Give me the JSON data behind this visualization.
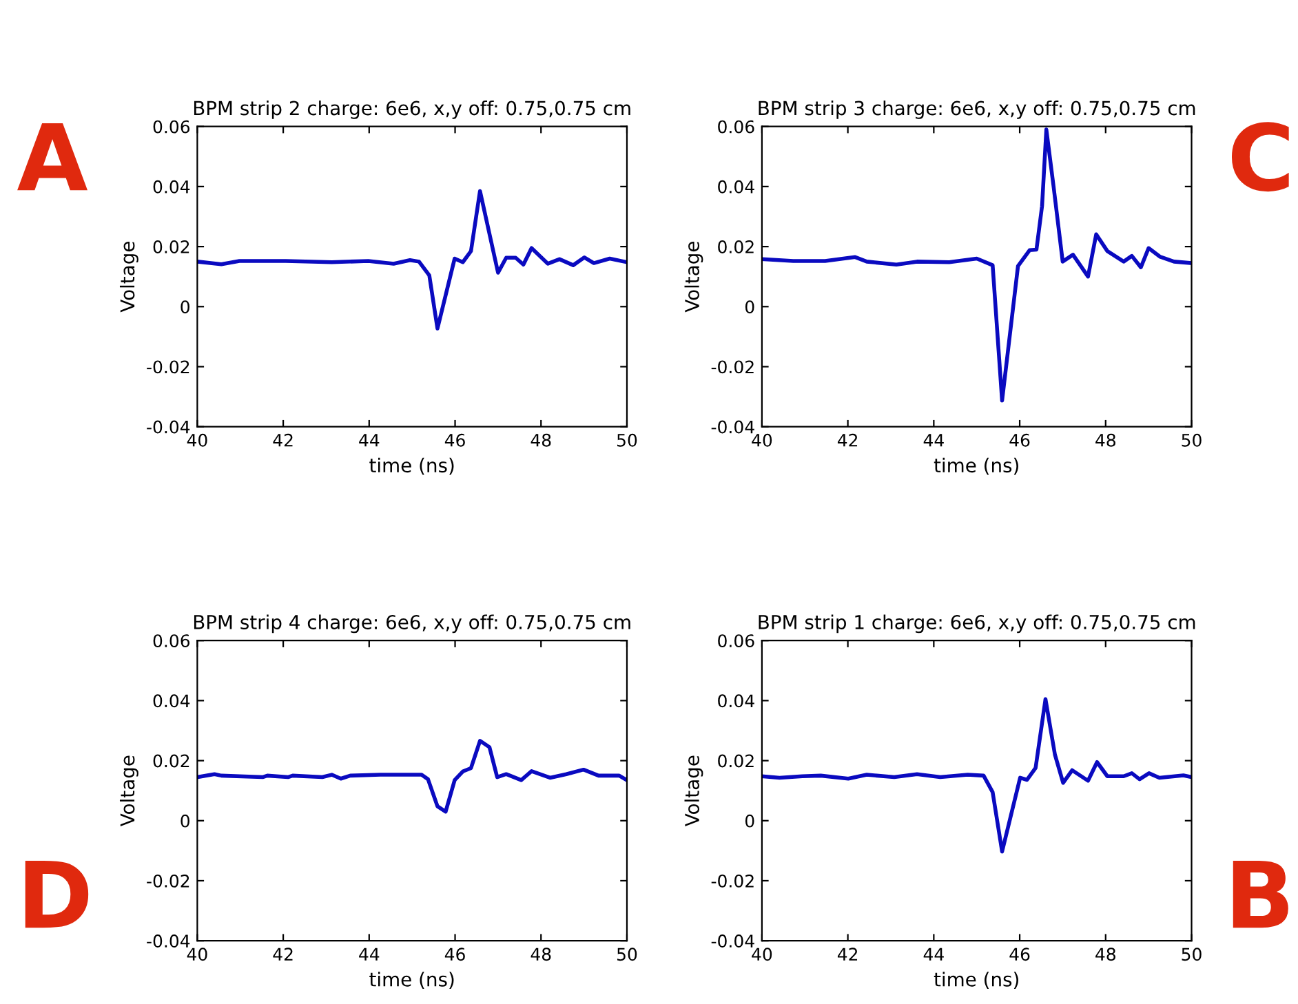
{
  "chart_data": [
    {
      "type": "line",
      "title": "BPM strip 2 charge: 6e6, x,y off: 0.75,0.75 cm",
      "xlabel": "time (ns)",
      "ylabel": "Voltage",
      "annotations": [
        "A"
      ],
      "xlim": [
        40,
        50
      ],
      "ylim": [
        -0.04,
        0.06
      ],
      "xticks": [
        40,
        42,
        44,
        46,
        48,
        50
      ],
      "yticks": [
        -0.04,
        -0.02,
        0,
        0.02,
        0.04,
        0.06
      ],
      "grid": false,
      "legend": false,
      "series": [
        {
          "color": "#0a0ac0",
          "x": [
            40,
            40.56,
            40.98,
            42.06,
            43.13,
            43.98,
            44.57,
            44.95,
            45.16,
            45.4,
            45.59,
            45.99,
            46.18,
            46.37,
            46.58,
            47.0,
            47.19,
            47.41,
            47.59,
            47.78,
            48.16,
            48.43,
            48.75,
            49.01,
            49.23,
            49.6,
            50.0
          ],
          "values": [
            0.015,
            0.0141,
            0.0152,
            0.0152,
            0.0148,
            0.0152,
            0.0143,
            0.0155,
            0.015,
            0.0104,
            -0.0073,
            0.016,
            0.0148,
            0.0185,
            0.0385,
            0.0113,
            0.0163,
            0.0163,
            0.014,
            0.0195,
            0.0143,
            0.0158,
            0.0138,
            0.0164,
            0.0145,
            0.016,
            0.0148
          ]
        }
      ]
    },
    {
      "type": "line",
      "title": "BPM strip 3 charge: 6e6, x,y off: 0.75,0.75 cm",
      "xlabel": "time (ns)",
      "ylabel": "Voltage",
      "annotations": [
        "C"
      ],
      "xlim": [
        40,
        50
      ],
      "ylim": [
        -0.04,
        0.06
      ],
      "xticks": [
        40,
        42,
        44,
        46,
        48,
        50
      ],
      "yticks": [
        -0.04,
        -0.02,
        0,
        0.02,
        0.04,
        0.06
      ],
      "grid": false,
      "legend": false,
      "series": [
        {
          "color": "#0a0ac0",
          "x": [
            40,
            40.73,
            41.47,
            42.17,
            42.44,
            43.13,
            43.61,
            44.36,
            45.0,
            45.37,
            45.59,
            45.96,
            46.23,
            46.39,
            46.52,
            46.62,
            46.79,
            47.0,
            47.24,
            47.59,
            47.78,
            48.04,
            48.42,
            48.61,
            48.82,
            49.0,
            49.27,
            49.59,
            50.0
          ],
          "values": [
            0.0158,
            0.0152,
            0.0152,
            0.0165,
            0.015,
            0.014,
            0.015,
            0.0148,
            0.016,
            0.0138,
            -0.0313,
            0.0135,
            0.0188,
            0.019,
            0.0335,
            0.059,
            0.0398,
            0.015,
            0.0173,
            0.01,
            0.0241,
            0.0185,
            0.015,
            0.0169,
            0.0131,
            0.0195,
            0.0166,
            0.015,
            0.0145
          ]
        }
      ]
    },
    {
      "type": "line",
      "title": "BPM strip 4 charge: 6e6, x,y off: 0.75,0.75 cm",
      "xlabel": "time (ns)",
      "ylabel": "Voltage",
      "annotations": [
        "D"
      ],
      "xlim": [
        40,
        50
      ],
      "ylim": [
        -0.04,
        0.06
      ],
      "xticks": [
        40,
        42,
        44,
        46,
        48,
        50
      ],
      "yticks": [
        -0.04,
        -0.02,
        0,
        0.02,
        0.04,
        0.06
      ],
      "grid": false,
      "legend": false,
      "series": [
        {
          "color": "#0a0ac0",
          "x": [
            40,
            40.4,
            40.56,
            41.52,
            41.63,
            42.11,
            42.22,
            42.91,
            43.13,
            43.34,
            43.56,
            44.26,
            45.22,
            45.37,
            45.59,
            45.78,
            45.99,
            46.18,
            46.37,
            46.58,
            46.8,
            46.98,
            47.19,
            47.54,
            47.78,
            48.21,
            48.59,
            48.99,
            49.34,
            49.82,
            50.0
          ],
          "values": [
            0.0145,
            0.0155,
            0.015,
            0.0145,
            0.015,
            0.0145,
            0.015,
            0.0145,
            0.0153,
            0.014,
            0.015,
            0.0153,
            0.0153,
            0.0138,
            0.0048,
            0.003,
            0.0135,
            0.0164,
            0.0175,
            0.0266,
            0.0245,
            0.0145,
            0.0155,
            0.0135,
            0.0165,
            0.0143,
            0.0155,
            0.017,
            0.015,
            0.015,
            0.0135
          ]
        }
      ]
    },
    {
      "type": "line",
      "title": "BPM strip 1 charge: 6e6, x,y off: 0.75,0.75 cm",
      "xlabel": "time (ns)",
      "ylabel": "Voltage",
      "annotations": [
        "B"
      ],
      "xlim": [
        40,
        50
      ],
      "ylim": [
        -0.04,
        0.06
      ],
      "xticks": [
        40,
        42,
        44,
        46,
        48,
        50
      ],
      "yticks": [
        -0.04,
        -0.02,
        0,
        0.02,
        0.04,
        0.06
      ],
      "grid": false,
      "legend": false,
      "series": [
        {
          "color": "#0a0ac0",
          "x": [
            40,
            40.41,
            40.94,
            41.37,
            42.01,
            42.44,
            43.08,
            43.61,
            44.15,
            44.79,
            45.16,
            45.37,
            45.59,
            46.01,
            46.17,
            46.37,
            46.6,
            46.82,
            47.01,
            47.22,
            47.59,
            47.8,
            48.04,
            48.42,
            48.61,
            48.79,
            49.01,
            49.25,
            49.81,
            50.0
          ],
          "values": [
            0.0148,
            0.0143,
            0.0148,
            0.015,
            0.014,
            0.0153,
            0.0145,
            0.0155,
            0.0145,
            0.0153,
            0.015,
            0.0095,
            -0.0103,
            0.0143,
            0.0136,
            0.0176,
            0.0405,
            0.022,
            0.0126,
            0.0168,
            0.0133,
            0.0195,
            0.0148,
            0.0148,
            0.0158,
            0.0138,
            0.0158,
            0.0143,
            0.0151,
            0.0145
          ]
        }
      ]
    }
  ]
}
